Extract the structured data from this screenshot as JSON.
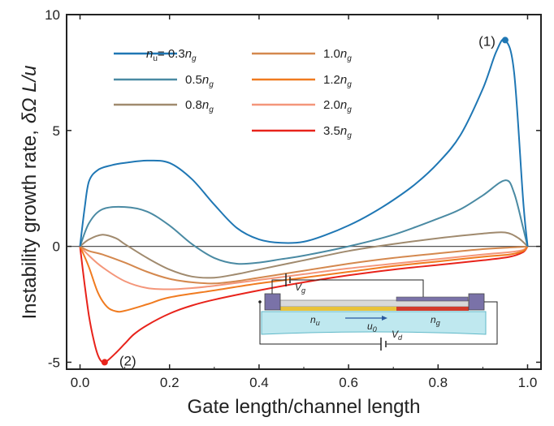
{
  "chart_data": {
    "type": "line",
    "xlabel": "Gate length/channel length",
    "ylabel_text": "Instability growth rate,",
    "ylabel_expr": "δΩ L/u",
    "xlim": [
      -0.03,
      1.03
    ],
    "ylim": [
      -5.3,
      10
    ],
    "xticks": [
      "0.0",
      "0.2",
      "0.4",
      "0.6",
      "0.8",
      "1.0"
    ],
    "yticks": [
      "-5",
      "0",
      "5",
      "10"
    ],
    "grid": false,
    "legend_location": "top-left",
    "series": [
      {
        "name": "n_u = 0.3n_g",
        "label_prefix": "n",
        "label_sub": "u",
        "label_mid": "= 0.3n",
        "label_sub2": "g",
        "color": "#1f77b4",
        "x": [
          0,
          0.01,
          0.02,
          0.04,
          0.07,
          0.1,
          0.15,
          0.2,
          0.25,
          0.3,
          0.35,
          0.4,
          0.45,
          0.5,
          0.55,
          0.6,
          0.65,
          0.7,
          0.75,
          0.8,
          0.85,
          0.9,
          0.93,
          0.95,
          0.97,
          0.99,
          1.0
        ],
        "y": [
          0,
          1.6,
          2.8,
          3.3,
          3.5,
          3.6,
          3.7,
          3.6,
          2.9,
          1.8,
          0.8,
          0.3,
          0.15,
          0.2,
          0.5,
          0.9,
          1.4,
          2.0,
          2.7,
          3.6,
          4.8,
          6.8,
          8.4,
          8.9,
          7.5,
          2.0,
          0
        ]
      },
      {
        "name": "0.5n_g",
        "label_mid": "0.5n",
        "label_sub2": "g",
        "color": "#4a8aa3",
        "x": [
          0,
          0.02,
          0.05,
          0.1,
          0.15,
          0.2,
          0.25,
          0.3,
          0.35,
          0.4,
          0.45,
          0.5,
          0.6,
          0.7,
          0.8,
          0.85,
          0.9,
          0.95,
          0.97,
          0.99,
          1.0
        ],
        "y": [
          0,
          1.0,
          1.6,
          1.7,
          1.5,
          0.9,
          0.1,
          -0.5,
          -0.75,
          -0.7,
          -0.55,
          -0.4,
          0.0,
          0.5,
          1.2,
          1.6,
          2.2,
          2.85,
          2.3,
          0.8,
          0
        ]
      },
      {
        "name": "0.8n_g",
        "label_mid": "0.8n",
        "label_sub2": "g",
        "color": "#a08a6e",
        "x": [
          0,
          0.02,
          0.05,
          0.08,
          0.1,
          0.15,
          0.2,
          0.25,
          0.3,
          0.35,
          0.4,
          0.5,
          0.6,
          0.7,
          0.8,
          0.9,
          0.95,
          0.98,
          1.0
        ],
        "y": [
          0,
          0.3,
          0.5,
          0.35,
          0.1,
          -0.5,
          -1.0,
          -1.3,
          -1.35,
          -1.2,
          -1.0,
          -0.6,
          -0.2,
          0.1,
          0.35,
          0.55,
          0.6,
          0.35,
          0
        ]
      },
      {
        "name": "1.0n_g",
        "label_mid": "1.0n",
        "label_sub2": "g",
        "color": "#d4884e",
        "x": [
          0,
          0.02,
          0.05,
          0.1,
          0.15,
          0.2,
          0.25,
          0.3,
          0.35,
          0.4,
          0.5,
          0.6,
          0.7,
          0.8,
          0.9,
          0.96,
          0.99,
          1.0
        ],
        "y": [
          0,
          -0.2,
          -0.35,
          -0.7,
          -1.1,
          -1.4,
          -1.55,
          -1.6,
          -1.5,
          -1.35,
          -1.05,
          -0.75,
          -0.5,
          -0.3,
          -0.12,
          -0.05,
          -0.02,
          0
        ]
      },
      {
        "name": "1.2n_g",
        "label_mid": "1.2n",
        "label_sub2": "g",
        "color": "#f07b20",
        "x": [
          0,
          0.02,
          0.04,
          0.06,
          0.08,
          0.1,
          0.15,
          0.2,
          0.3,
          0.4,
          0.5,
          0.6,
          0.7,
          0.8,
          0.9,
          0.96,
          0.99,
          1.0
        ],
        "y": [
          0,
          -0.9,
          -2.0,
          -2.6,
          -2.8,
          -2.78,
          -2.5,
          -2.2,
          -1.9,
          -1.6,
          -1.35,
          -1.1,
          -0.85,
          -0.65,
          -0.45,
          -0.35,
          -0.2,
          0
        ]
      },
      {
        "name": "2.0n_g",
        "label_mid": "2.0n",
        "label_sub2": "g",
        "color": "#f4967a",
        "x": [
          0,
          0.02,
          0.05,
          0.1,
          0.15,
          0.2,
          0.25,
          0.3,
          0.4,
          0.5,
          0.6,
          0.7,
          0.8,
          0.9,
          0.96,
          0.99,
          1.0
        ],
        "y": [
          0,
          -0.4,
          -0.9,
          -1.5,
          -1.8,
          -1.85,
          -1.8,
          -1.7,
          -1.45,
          -1.2,
          -0.95,
          -0.75,
          -0.55,
          -0.35,
          -0.25,
          -0.15,
          0
        ]
      },
      {
        "name": "3.5n_g",
        "label_mid": "3.5n",
        "label_sub2": "g",
        "color": "#e8231b",
        "x": [
          0,
          0.01,
          0.02,
          0.03,
          0.04,
          0.05,
          0.06,
          0.08,
          0.1,
          0.12,
          0.15,
          0.2,
          0.25,
          0.3,
          0.4,
          0.5,
          0.6,
          0.7,
          0.8,
          0.9,
          0.96,
          0.99,
          1.0
        ],
        "y": [
          0,
          -1.6,
          -3.0,
          -4.0,
          -4.7,
          -5.0,
          -4.95,
          -4.6,
          -4.2,
          -3.8,
          -3.4,
          -2.9,
          -2.55,
          -2.3,
          -1.9,
          -1.55,
          -1.25,
          -1.0,
          -0.8,
          -0.6,
          -0.45,
          -0.25,
          0
        ]
      }
    ],
    "markers": [
      {
        "x": 0.95,
        "y": 8.9,
        "color": "#1f77b4",
        "label": "(1)"
      },
      {
        "x": 0.055,
        "y": -5.0,
        "color": "#e8231b",
        "label": "(2)"
      }
    ]
  },
  "inset": {
    "vg_label": "V",
    "vg_sub": "g",
    "vd_label": "V",
    "vd_sub": "d",
    "nu_label": "n",
    "nu_sub": "u",
    "ng_label": "n",
    "ng_sub": "g",
    "u0_label": "u",
    "u0_sub": "0"
  }
}
